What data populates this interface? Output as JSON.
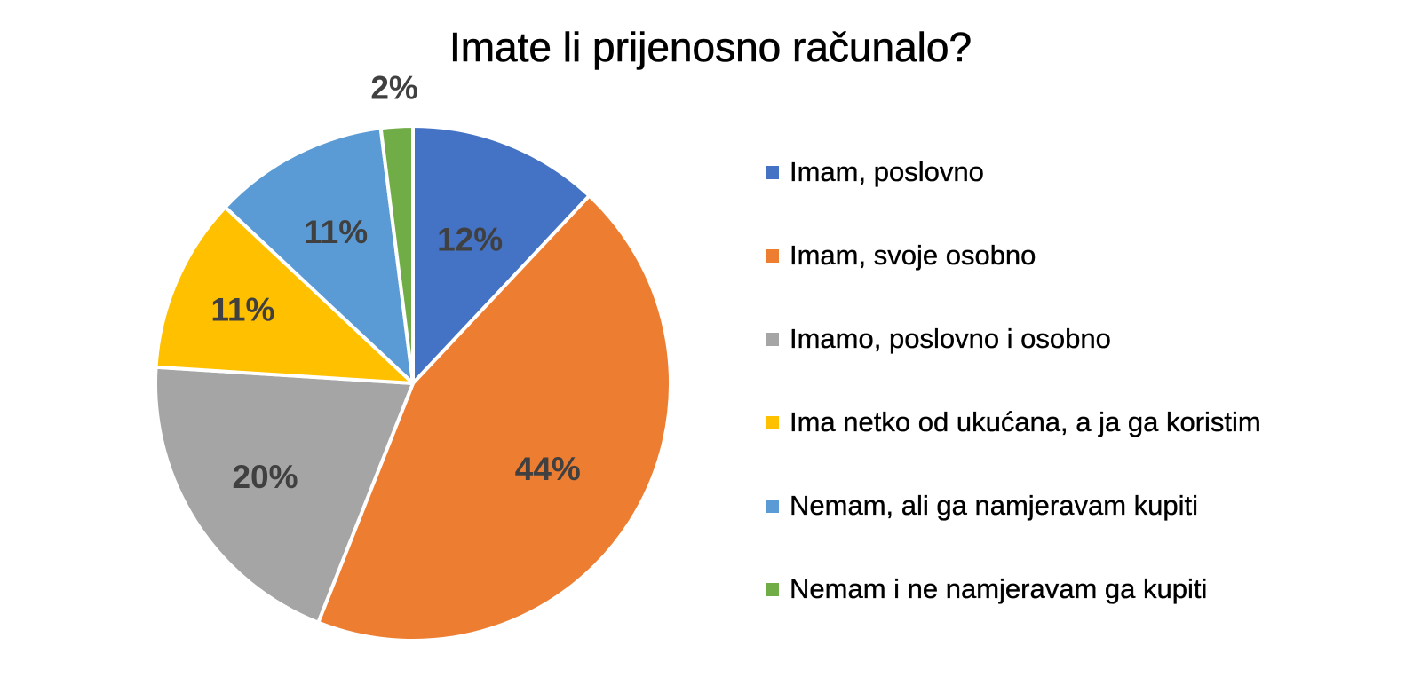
{
  "chart_data": {
    "type": "pie",
    "title": "Imate li prijenosno računalo?",
    "legend_position": "right",
    "slices": [
      {
        "label": "Imam, poslovno",
        "value": 12,
        "value_label": "12%",
        "color": "#4472C4"
      },
      {
        "label": "Imam, svoje osobno",
        "value": 44,
        "value_label": "44%",
        "color": "#ED7D31"
      },
      {
        "label": "Imamo, poslovno i osobno",
        "value": 20,
        "value_label": "20%",
        "color": "#A5A5A5"
      },
      {
        "label": "Ima netko od ukućana, a ja ga koristim",
        "value": 11,
        "value_label": "11%",
        "color": "#FFC000"
      },
      {
        "label": "Nemam, ali ga namjeravam kupiti",
        "value": 11,
        "value_label": "11%",
        "color": "#5B9BD5"
      },
      {
        "label": "Nemam i ne namjeravam ga kupiti",
        "value": 2,
        "value_label": "2%",
        "color": "#70AD47"
      }
    ]
  }
}
